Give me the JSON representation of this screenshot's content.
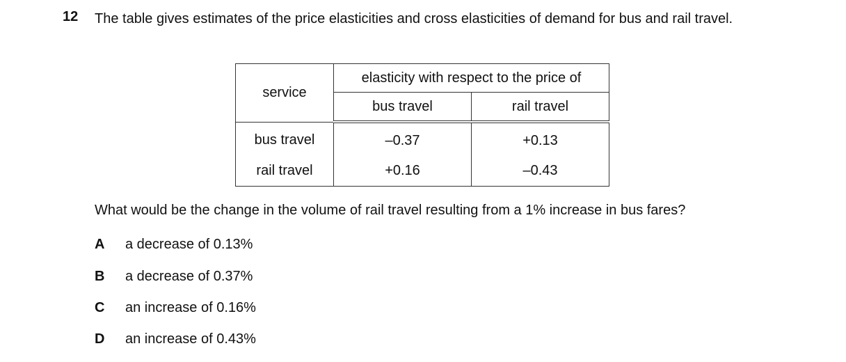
{
  "question": {
    "number": "12",
    "text": "The table gives estimates of the price elasticities and cross elasticities of demand for bus and rail travel."
  },
  "table": {
    "header": {
      "row_label": "service",
      "group": "elasticity with respect to the price of",
      "columns": [
        "bus travel",
        "rail travel"
      ]
    },
    "rows": [
      [
        "bus travel",
        "–0.37",
        "+0.13"
      ],
      [
        "rail travel",
        "+0.16",
        "–0.43"
      ]
    ]
  },
  "prompt": "What would be the change in the volume of rail travel resulting from a 1% increase in bus fares?",
  "options": [
    {
      "letter": "A",
      "text": "a decrease of 0.13%"
    },
    {
      "letter": "B",
      "text": "a decrease of 0.37%"
    },
    {
      "letter": "C",
      "text": "an increase of 0.16%"
    },
    {
      "letter": "D",
      "text": "an increase of 0.43%"
    }
  ]
}
